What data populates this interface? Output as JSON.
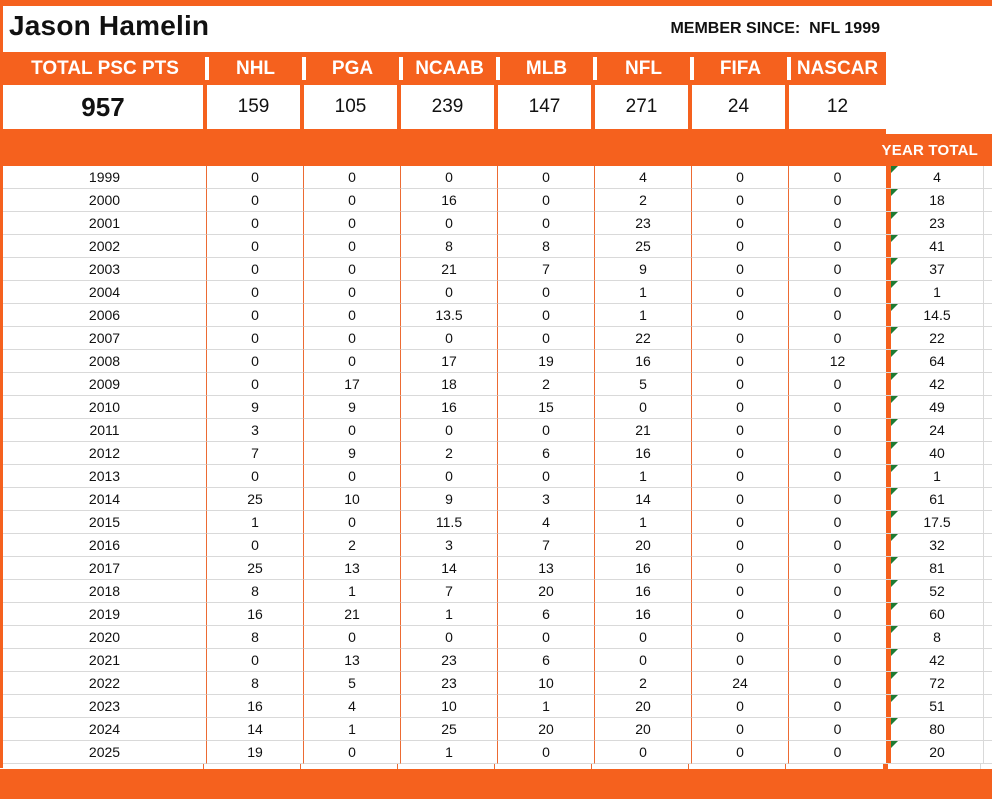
{
  "header": {
    "title": "Jason Hamelin",
    "member_since": "MEMBER SINCE:  NFL 1999"
  },
  "summary": {
    "total_label": "TOTAL PSC PTS",
    "total_value": "957",
    "columns": [
      {
        "label": "NHL",
        "value": "159"
      },
      {
        "label": "PGA",
        "value": "105"
      },
      {
        "label": "NCAAB",
        "value": "239"
      },
      {
        "label": "MLB",
        "value": "147"
      },
      {
        "label": "NFL",
        "value": "271"
      },
      {
        "label": "FIFA",
        "value": "24"
      },
      {
        "label": "NASCAR",
        "value": "12"
      }
    ]
  },
  "year_table": {
    "year_total_label": "YEAR TOTAL",
    "sports_order": [
      "NHL",
      "PGA",
      "NCAAB",
      "MLB",
      "NFL",
      "FIFA",
      "NASCAR"
    ],
    "rows": [
      {
        "year": "1999",
        "values": [
          "0",
          "0",
          "0",
          "0",
          "4",
          "0",
          "0"
        ],
        "total": "4"
      },
      {
        "year": "2000",
        "values": [
          "0",
          "0",
          "16",
          "0",
          "2",
          "0",
          "0"
        ],
        "total": "18"
      },
      {
        "year": "2001",
        "values": [
          "0",
          "0",
          "0",
          "0",
          "23",
          "0",
          "0"
        ],
        "total": "23"
      },
      {
        "year": "2002",
        "values": [
          "0",
          "0",
          "8",
          "8",
          "25",
          "0",
          "0"
        ],
        "total": "41"
      },
      {
        "year": "2003",
        "values": [
          "0",
          "0",
          "21",
          "7",
          "9",
          "0",
          "0"
        ],
        "total": "37"
      },
      {
        "year": "2004",
        "values": [
          "0",
          "0",
          "0",
          "0",
          "1",
          "0",
          "0"
        ],
        "total": "1"
      },
      {
        "year": "2006",
        "values": [
          "0",
          "0",
          "13.5",
          "0",
          "1",
          "0",
          "0"
        ],
        "total": "14.5"
      },
      {
        "year": "2007",
        "values": [
          "0",
          "0",
          "0",
          "0",
          "22",
          "0",
          "0"
        ],
        "total": "22"
      },
      {
        "year": "2008",
        "values": [
          "0",
          "0",
          "17",
          "19",
          "16",
          "0",
          "12"
        ],
        "total": "64"
      },
      {
        "year": "2009",
        "values": [
          "0",
          "17",
          "18",
          "2",
          "5",
          "0",
          "0"
        ],
        "total": "42"
      },
      {
        "year": "2010",
        "values": [
          "9",
          "9",
          "16",
          "15",
          "0",
          "0",
          "0"
        ],
        "total": "49"
      },
      {
        "year": "2011",
        "values": [
          "3",
          "0",
          "0",
          "0",
          "21",
          "0",
          "0"
        ],
        "total": "24"
      },
      {
        "year": "2012",
        "values": [
          "7",
          "9",
          "2",
          "6",
          "16",
          "0",
          "0"
        ],
        "total": "40"
      },
      {
        "year": "2013",
        "values": [
          "0",
          "0",
          "0",
          "0",
          "1",
          "0",
          "0"
        ],
        "total": "1"
      },
      {
        "year": "2014",
        "values": [
          "25",
          "10",
          "9",
          "3",
          "14",
          "0",
          "0"
        ],
        "total": "61"
      },
      {
        "year": "2015",
        "values": [
          "1",
          "0",
          "11.5",
          "4",
          "1",
          "0",
          "0"
        ],
        "total": "17.5"
      },
      {
        "year": "2016",
        "values": [
          "0",
          "2",
          "3",
          "7",
          "20",
          "0",
          "0"
        ],
        "total": "32"
      },
      {
        "year": "2017",
        "values": [
          "25",
          "13",
          "14",
          "13",
          "16",
          "0",
          "0"
        ],
        "total": "81"
      },
      {
        "year": "2018",
        "values": [
          "8",
          "1",
          "7",
          "20",
          "16",
          "0",
          "0"
        ],
        "total": "52"
      },
      {
        "year": "2019",
        "values": [
          "16",
          "21",
          "1",
          "6",
          "16",
          "0",
          "0"
        ],
        "total": "60"
      },
      {
        "year": "2020",
        "values": [
          "8",
          "0",
          "0",
          "0",
          "0",
          "0",
          "0"
        ],
        "total": "8"
      },
      {
        "year": "2021",
        "values": [
          "0",
          "13",
          "23",
          "6",
          "0",
          "0",
          "0"
        ],
        "total": "42"
      },
      {
        "year": "2022",
        "values": [
          "8",
          "5",
          "23",
          "10",
          "2",
          "24",
          "0"
        ],
        "total": "72"
      },
      {
        "year": "2023",
        "values": [
          "16",
          "4",
          "10",
          "1",
          "20",
          "0",
          "0"
        ],
        "total": "51"
      },
      {
        "year": "2024",
        "values": [
          "14",
          "1",
          "25",
          "20",
          "20",
          "0",
          "0"
        ],
        "total": "80"
      },
      {
        "year": "2025",
        "values": [
          "19",
          "0",
          "1",
          "0",
          "0",
          "0",
          "0"
        ],
        "total": "20"
      }
    ]
  },
  "colors": {
    "accent_orange": "#F5611E",
    "gridline_orange": "#EC6B33",
    "gridline_gray": "#D9D9D9",
    "flag_green": "#1E7B33"
  }
}
